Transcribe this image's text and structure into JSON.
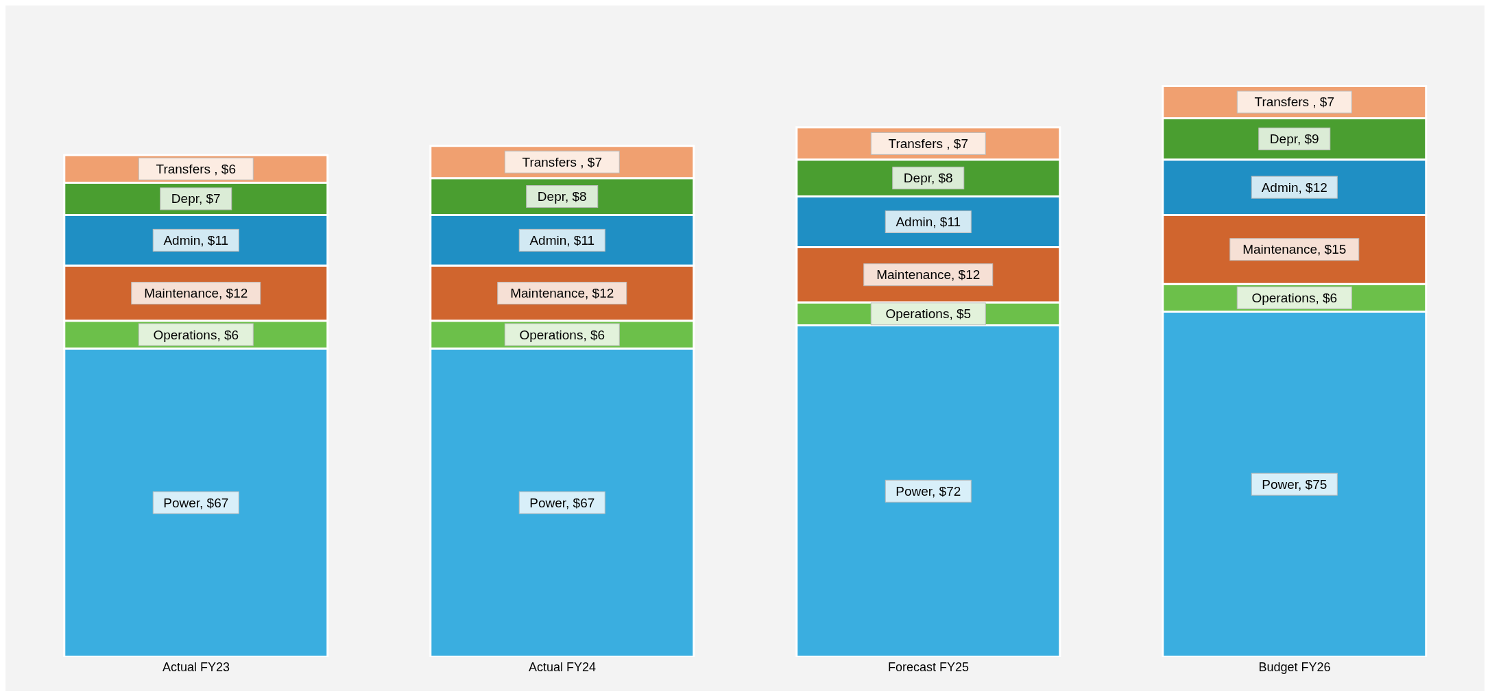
{
  "chart_data": {
    "type": "bar",
    "stacked": true,
    "categories": [
      "Actual FY23",
      "Actual FY24",
      "Forecast FY25",
      "Budget FY26"
    ],
    "series": [
      {
        "color": "#3aaee0",
        "values": [
          67,
          67,
          72,
          75
        ],
        "value_labels": [
          "Power, $67",
          "Power, $67",
          "Power, $72",
          "Power, $75"
        ]
      },
      {
        "color": "#6cc04a",
        "values": [
          6,
          6,
          5,
          6
        ],
        "value_labels": [
          "Operations, $6",
          "Operations, $6",
          "Operations, $5",
          "Operations, $6"
        ]
      },
      {
        "color": "#d0652e",
        "values": [
          12,
          12,
          12,
          15
        ],
        "value_labels": [
          "Maintenance, $12",
          "Maintenance, $12",
          "Maintenance, $12",
          "Maintenance, $15"
        ]
      },
      {
        "color": "#1f8fc4",
        "values": [
          11,
          11,
          11,
          12
        ],
        "value_labels": [
          "Admin, $11",
          "Admin, $11",
          "Admin, $11",
          "Admin, $12"
        ]
      },
      {
        "color": "#4a9e30",
        "values": [
          7,
          8,
          8,
          9
        ],
        "value_labels": [
          "Depr, $7",
          "Depr, $8",
          "Depr, $8",
          "Depr, $9"
        ]
      },
      {
        "color": "#f0a070",
        "values": [
          6,
          7,
          7,
          7
        ],
        "value_labels": [
          "Transfers , $6",
          "Transfers , $7",
          "Transfers , $7",
          "Transfers , $7"
        ]
      }
    ],
    "tick_labels": "x"
  }
}
